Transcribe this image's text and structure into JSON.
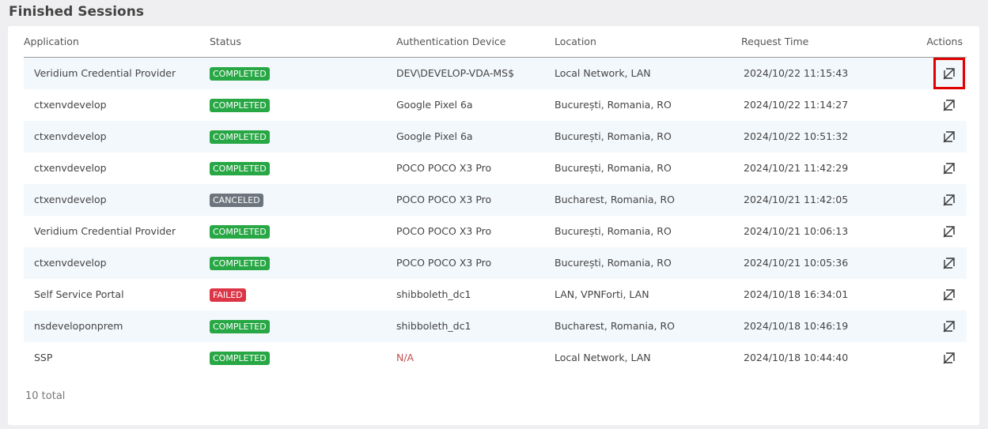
{
  "title": "Finished Sessions",
  "columns": [
    "Application",
    "Status",
    "Authentication Device",
    "Location",
    "Request Time",
    "Actions"
  ],
  "status_colors": {
    "COMPLETED": "#28a745",
    "CANCELED": "#6c757d",
    "FAILED": "#dc3545"
  },
  "rows": [
    {
      "app": "Veridium Credential Provider",
      "status": "COMPLETED",
      "device": "DEV\\DEVELOP-VDA-MS$",
      "location": "Local Network, LAN",
      "time": "2024/10/22 11:15:43",
      "highlight": true
    },
    {
      "app": "ctxenvdevelop",
      "status": "COMPLETED",
      "device": "Google Pixel 6a",
      "location": "București, Romania, RO",
      "time": "2024/10/22 11:14:27"
    },
    {
      "app": "ctxenvdevelop",
      "status": "COMPLETED",
      "device": "Google Pixel 6a",
      "location": "București, Romania, RO",
      "time": "2024/10/22 10:51:32"
    },
    {
      "app": "ctxenvdevelop",
      "status": "COMPLETED",
      "device": "POCO POCO X3 Pro",
      "location": "București, Romania, RO",
      "time": "2024/10/21 11:42:29"
    },
    {
      "app": "ctxenvdevelop",
      "status": "CANCELED",
      "device": "POCO POCO X3 Pro",
      "location": "Bucharest, Romania, RO",
      "time": "2024/10/21 11:42:05"
    },
    {
      "app": "Veridium Credential Provider",
      "status": "COMPLETED",
      "device": "POCO POCO X3 Pro",
      "location": "București, Romania, RO",
      "time": "2024/10/21 10:06:13"
    },
    {
      "app": "ctxenvdevelop",
      "status": "COMPLETED",
      "device": "POCO POCO X3 Pro",
      "location": "București, Romania, RO",
      "time": "2024/10/21 10:05:36"
    },
    {
      "app": "Self Service Portal",
      "status": "FAILED",
      "device": "shibboleth_dc1",
      "location": "LAN, VPNForti, LAN",
      "time": "2024/10/18 16:34:01"
    },
    {
      "app": "nsdeveloponprem",
      "status": "COMPLETED",
      "device": "shibboleth_dc1",
      "location": "Bucharest, Romania, RO",
      "time": "2024/10/18 10:46:19"
    },
    {
      "app": "SSP",
      "status": "COMPLETED",
      "device": "N/A",
      "location": "Local Network, LAN",
      "time": "2024/10/18 10:44:40"
    }
  ],
  "action_icon": "open-external-icon",
  "total": "10 total"
}
